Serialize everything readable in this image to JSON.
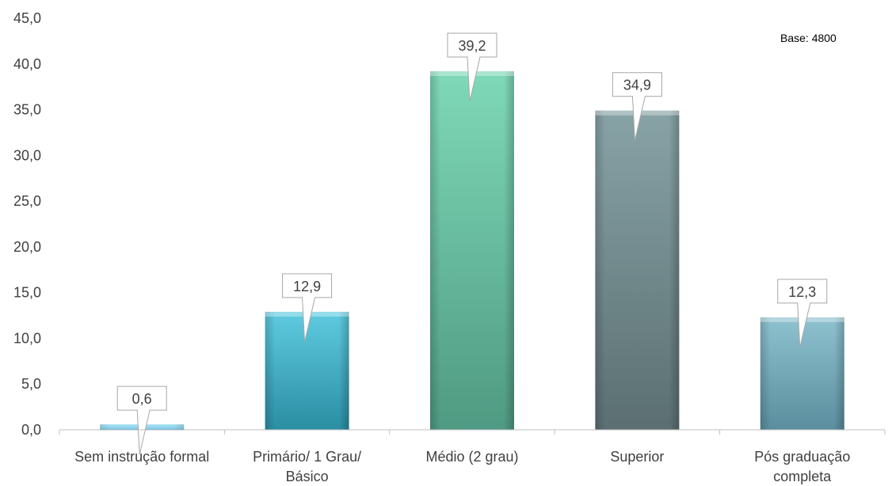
{
  "chart_data": {
    "type": "bar",
    "categories": [
      "Sem instrução formal",
      "Primário/ 1 Grau/ Básico",
      "Médio (2 grau)",
      "Superior",
      "Pós graduação completa"
    ],
    "category_lines": [
      [
        "Sem instrução formal"
      ],
      [
        "Primário/ 1 Grau/",
        "Básico"
      ],
      [
        "Médio (2 grau)"
      ],
      [
        "Superior"
      ],
      [
        "Pós graduação",
        "completa"
      ]
    ],
    "values": [
      0.6,
      12.9,
      39.2,
      34.9,
      12.3
    ],
    "value_labels": [
      "0,6",
      "12,9",
      "39,2",
      "34,9",
      "12,3"
    ],
    "ylim": [
      0,
      45
    ],
    "yticks": [
      0,
      5,
      10,
      15,
      20,
      25,
      30,
      35,
      40,
      45
    ],
    "ytick_labels": [
      "0,0",
      "5,0",
      "10,0",
      "15,0",
      "20,0",
      "25,0",
      "30,0",
      "35,0",
      "40,0",
      "45,0"
    ],
    "grid": false,
    "legend": "none",
    "annotation": "Base: 4800",
    "bar_colors": [
      [
        "#7fd6ef",
        "#3aa8d6"
      ],
      [
        "#5fcbe0",
        "#2b8ea3"
      ],
      [
        "#7fd9b8",
        "#4f9a82"
      ],
      [
        "#88a3a6",
        "#5b6f72"
      ],
      [
        "#8fc2cf",
        "#5a8e9e"
      ]
    ],
    "axis_color": "#bfbfbf"
  }
}
